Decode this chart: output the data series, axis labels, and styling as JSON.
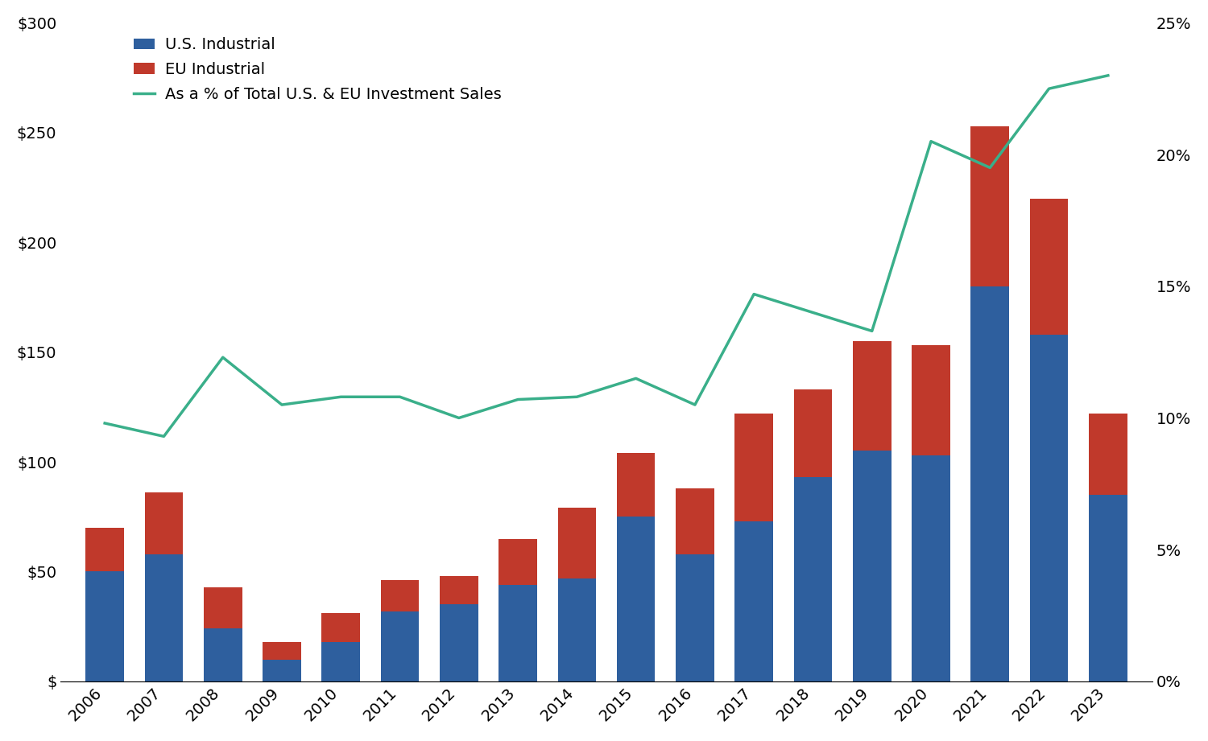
{
  "years": [
    2006,
    2007,
    2008,
    2009,
    2010,
    2011,
    2012,
    2013,
    2014,
    2015,
    2016,
    2017,
    2018,
    2019,
    2020,
    2021,
    2022,
    2023
  ],
  "us_industrial": [
    50,
    58,
    24,
    10,
    18,
    32,
    35,
    44,
    47,
    75,
    58,
    73,
    93,
    105,
    103,
    180,
    158,
    85
  ],
  "eu_industrial": [
    20,
    28,
    19,
    8,
    13,
    14,
    13,
    21,
    32,
    29,
    30,
    49,
    40,
    50,
    50,
    73,
    62,
    37
  ],
  "pct_line": [
    0.098,
    0.093,
    0.123,
    0.105,
    0.108,
    0.108,
    0.1,
    0.107,
    0.108,
    0.115,
    0.105,
    0.147,
    0.14,
    0.133,
    0.205,
    0.195,
    0.225,
    0.23
  ],
  "us_color": "#2E5F9E",
  "eu_color": "#C0392B",
  "line_color": "#3AAF8A",
  "ylim_left": [
    0,
    300
  ],
  "ylim_right": [
    0,
    0.25
  ],
  "yticks_left": [
    0,
    50,
    100,
    150,
    200,
    250,
    300
  ],
  "yticks_left_labels": [
    "$",
    "$50",
    "$100",
    "$150",
    "$200",
    "$250",
    "$300"
  ],
  "yticks_right": [
    0.0,
    0.05,
    0.1,
    0.15,
    0.2,
    0.25
  ],
  "yticks_right_labels": [
    "0%",
    "5%",
    "10%",
    "15%",
    "20%",
    "25%"
  ],
  "legend_us": "U.S. Industrial",
  "legend_eu": "EU Industrial",
  "legend_pct": "As a % of Total U.S. & EU Investment Sales",
  "background_color": "#ffffff",
  "bar_width": 0.65
}
